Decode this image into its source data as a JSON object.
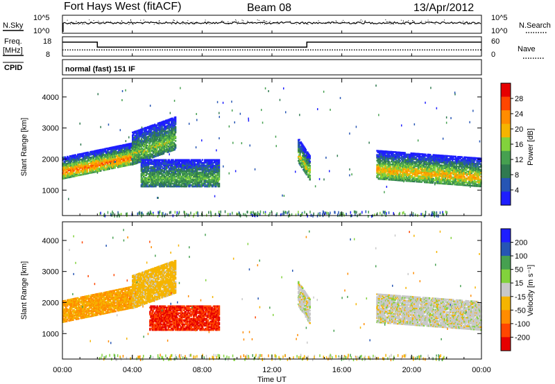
{
  "header": {
    "title": "Fort Hays West (fitACF)",
    "beam": "Beam 08",
    "date": "13/Apr/2012"
  },
  "strip": {
    "nsky_label": "N.Sky",
    "nsky_top_tick": "10^5",
    "nsky_bottom_tick": "10^0",
    "nsearch_label": "N.Search",
    "nsearch_top_tick": "10^5",
    "nsearch_bottom_tick": "10^0",
    "freq_label": "Freq.",
    "freq_unit": "[MHz]",
    "freq_ticks": [
      "18",
      "8"
    ],
    "cpid_label": "CPID",
    "nave_label": "Nave",
    "nave_ticks": [
      "60",
      "0"
    ],
    "cpid_text": "normal (fast) 151 IF"
  },
  "colors": {
    "power": [
      "#1e1eff",
      "#2655b4",
      "#307a50",
      "#46a050",
      "#82d23c",
      "#f5b400",
      "#ff8c00",
      "#ff4600",
      "#e60000"
    ],
    "velocity": [
      "#e60000",
      "#ff4600",
      "#ff8c00",
      "#f5b400",
      "#c8c8c8",
      "#82d23c",
      "#46a050",
      "#2655b4",
      "#1e1eff"
    ]
  },
  "chart_data": [
    {
      "type": "line",
      "title": "N.Sky / N.Search",
      "x_range": [
        "00:00",
        "24:00"
      ],
      "series": [
        {
          "name": "N.Sky",
          "level": "~10^4 (near top of 10^0-10^5 scale), nearly constant through the day"
        },
        {
          "name": "N.Search",
          "level": "dotted, near top of scale"
        }
      ]
    },
    {
      "type": "line",
      "title": "Freq. / Nave",
      "x_range": [
        "00:00",
        "24:00"
      ],
      "yticks_freq": [
        8,
        18
      ],
      "yticks_nave": [
        0,
        60
      ],
      "series": [
        {
          "name": "Freq.",
          "x": [
            "00:00",
            "02:00",
            "02:00",
            "14:00",
            "14:00",
            "24:00"
          ],
          "values": [
            17,
            17,
            13,
            13,
            17,
            17
          ]
        },
        {
          "name": "Nave",
          "x": [
            "00:00",
            "24:00"
          ],
          "values": [
            15,
            15
          ]
        }
      ]
    },
    {
      "type": "heatmap",
      "title": "Power",
      "xlabel": "",
      "ylabel": "Slant Range [km]",
      "xticks": [
        "00:00",
        "04:00",
        "08:00",
        "12:00",
        "16:00",
        "20:00",
        "00:00"
      ],
      "yticks": [
        1000,
        2000,
        3000,
        4000
      ],
      "ylim": [
        180,
        4600
      ],
      "colorbar_label": "Power [dB]",
      "colorbar_ticks": [
        "4",
        "8",
        "12",
        "16",
        "20",
        "24",
        "28"
      ],
      "echo_bands": [
        {
          "t_start": 0.0,
          "t_end": 4.3,
          "range_start": 1350,
          "range_end": 2050,
          "peak_db": 28
        },
        {
          "t_start": 4.0,
          "t_end": 6.5,
          "range_start": 1800,
          "range_end": 2900,
          "peak_db": 18
        },
        {
          "t_start": 4.5,
          "t_end": 9.0,
          "range_start": 1100,
          "range_end": 2000,
          "peak_db": 16
        },
        {
          "t_start": 13.5,
          "t_end": 14.2,
          "range_start": 1900,
          "range_end": 2700,
          "peak_db": 20
        },
        {
          "t_start": 18.0,
          "t_end": 24.0,
          "range_start": 1350,
          "range_end": 2300,
          "peak_db": 24
        }
      ]
    },
    {
      "type": "heatmap",
      "title": "Velocity",
      "xlabel": "Time UT",
      "ylabel": "Slant Range [km]",
      "xticks": [
        "00:00",
        "04:00",
        "08:00",
        "12:00",
        "16:00",
        "20:00",
        "00:00"
      ],
      "yticks": [
        1000,
        2000,
        3000,
        4000
      ],
      "ylim": [
        180,
        4600
      ],
      "colorbar_label": "Velocity [m s⁻¹]",
      "colorbar_ticks": [
        "200",
        "100",
        "50",
        "15",
        "-15",
        "-50",
        "-100",
        "-200"
      ],
      "echo_bands": [
        {
          "t_start": 0.0,
          "t_end": 4.3,
          "range_start": 1350,
          "range_end": 2050,
          "velocity": -50
        },
        {
          "t_start": 4.0,
          "t_end": 6.5,
          "range_start": 1800,
          "range_end": 2900,
          "velocity": -30
        },
        {
          "t_start": 5.0,
          "t_end": 9.0,
          "range_start": 1100,
          "range_end": 1900,
          "velocity": -200
        },
        {
          "t_start": 13.5,
          "t_end": 14.2,
          "range_start": 1900,
          "range_end": 2700,
          "velocity": 0
        },
        {
          "t_start": 18.0,
          "t_end": 24.0,
          "range_start": 1350,
          "range_end": 2300,
          "velocity": 0
        }
      ]
    }
  ]
}
